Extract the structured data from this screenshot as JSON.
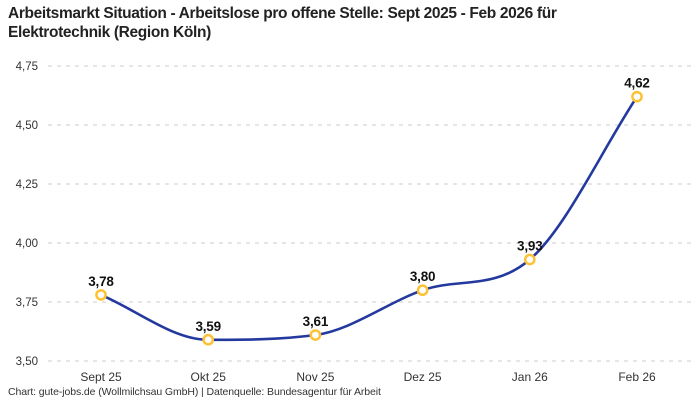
{
  "title": {
    "line1": "Arbeitsmarkt Situation - Arbeitslose pro offene Stelle: Sept 2025 - Feb 2026 für",
    "line2": "Elektrotechnik (Region Köln)"
  },
  "footer": "Chart: gute-jobs.de (Wollmilchsau GmbH) | Datenquelle: Bundesagentur für Arbeit",
  "chart_data": {
    "type": "line",
    "title": "Arbeitsmarkt Situation - Arbeitslose pro offene Stelle: Sept 2025 - Feb 2026 für Elektrotechnik (Region Köln)",
    "categories": [
      "Sept 25",
      "Okt 25",
      "Nov 25",
      "Dez 25",
      "Jan 26",
      "Feb 26"
    ],
    "values": [
      3.78,
      3.59,
      3.61,
      3.8,
      3.93,
      4.62
    ],
    "value_labels": [
      "3,78",
      "3,59",
      "3,61",
      "3,80",
      "3,93",
      "4,62"
    ],
    "xlabel": "",
    "ylabel": "",
    "ylim": [
      3.5,
      4.75
    ],
    "yticks": [
      3.5,
      3.75,
      4.0,
      4.25,
      4.5,
      4.75
    ],
    "ytick_labels": [
      "3,50",
      "3,75",
      "4,00",
      "4,25",
      "4,50",
      "4,75"
    ],
    "grid": "horizontal-dashed",
    "legend": "none",
    "curve": "monotone",
    "colors": {
      "line": "#23399e",
      "marker_stroke": "#fcc234",
      "marker_fill": "#ffffff",
      "grid": "#cccccc",
      "tick_text": "#333333",
      "data_label": "#111111",
      "title_text": "#222222"
    }
  }
}
